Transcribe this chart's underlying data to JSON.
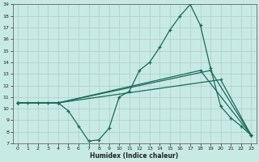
{
  "xlabel": "Humidex (Indice chaleur)",
  "xlim": [
    -0.5,
    23.5
  ],
  "ylim": [
    7,
    19
  ],
  "xticks": [
    0,
    1,
    2,
    3,
    4,
    5,
    6,
    7,
    8,
    9,
    10,
    11,
    12,
    13,
    14,
    15,
    16,
    17,
    18,
    19,
    20,
    21,
    22,
    23
  ],
  "yticks": [
    7,
    8,
    9,
    10,
    11,
    12,
    13,
    14,
    15,
    16,
    17,
    18,
    19
  ],
  "bg_color": "#c8eae4",
  "grid_color": "#b0ccc8",
  "line_color": "#1a6b5a",
  "line1_x": [
    0,
    1,
    2,
    3,
    4,
    5,
    6,
    7,
    8,
    9,
    10,
    11,
    12,
    13,
    14,
    15,
    16,
    17,
    18,
    19,
    20,
    21,
    22,
    23
  ],
  "line1_y": [
    10.5,
    10.5,
    10.5,
    10.5,
    10.5,
    9.8,
    8.5,
    7.2,
    7.3,
    8.3,
    11.0,
    11.5,
    13.3,
    14.0,
    15.3,
    16.8,
    18.0,
    19.0,
    17.2,
    13.5,
    10.2,
    9.2,
    8.5,
    7.7
  ],
  "line2_x": [
    0,
    4,
    18,
    23
  ],
  "line2_y": [
    10.5,
    10.5,
    13.3,
    7.7
  ],
  "line3_x": [
    0,
    4,
    20,
    23
  ],
  "line3_y": [
    10.5,
    10.5,
    12.5,
    7.7
  ],
  "line4_x": [
    0,
    4,
    19,
    23
  ],
  "line4_y": [
    10.5,
    10.5,
    13.3,
    7.7
  ]
}
